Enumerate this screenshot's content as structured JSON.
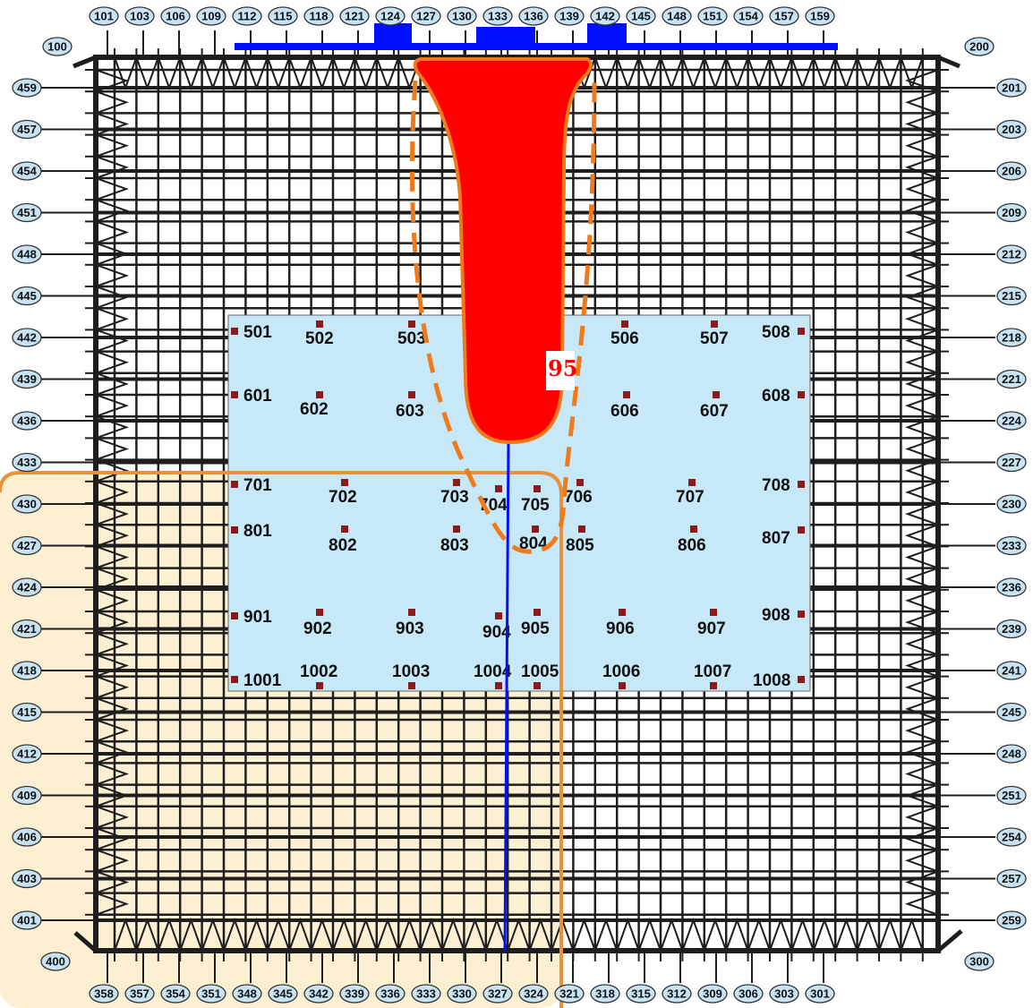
{
  "colors": {
    "grid_line": "#1e1e1e",
    "heat_zone": "#ff0000",
    "heat_outline": "#f07a1a",
    "dashed_contour": "#f07a1a",
    "sensor_panel": "#c6e8f8",
    "shaded_region": "#fdf0d2",
    "shaded_border": "#e8903a",
    "top_bar": "#0010ff",
    "vertical_line": "#0010ff",
    "sensor_marker": "#8b1a1a",
    "oval_fill": "#c8e4f4"
  },
  "value_label": "95",
  "top_labels": [
    "101",
    "103",
    "106",
    "109",
    "112",
    "115",
    "118",
    "121",
    "124",
    "127",
    "130",
    "133",
    "136",
    "139",
    "142",
    "145",
    "148",
    "151",
    "154",
    "157",
    "159"
  ],
  "bottom_labels": [
    "358",
    "357",
    "354",
    "351",
    "348",
    "345",
    "342",
    "339",
    "336",
    "333",
    "330",
    "327",
    "324",
    "321",
    "318",
    "315",
    "312",
    "309",
    "306",
    "303",
    "301"
  ],
  "left_labels": [
    "459",
    "457",
    "454",
    "451",
    "448",
    "445",
    "442",
    "439",
    "436",
    "433",
    "430",
    "427",
    "424",
    "421",
    "418",
    "415",
    "412",
    "409",
    "406",
    "403",
    "401"
  ],
  "right_labels": [
    "201",
    "203",
    "206",
    "209",
    "212",
    "215",
    "218",
    "221",
    "224",
    "227",
    "230",
    "233",
    "236",
    "239",
    "241",
    "245",
    "248",
    "251",
    "254",
    "257",
    "259"
  ],
  "corner_labels": {
    "top_left": "100",
    "top_right": "200",
    "bottom_right": "300",
    "bottom_left": "400"
  },
  "sensors": [
    {
      "id": "501",
      "side": "right"
    },
    {
      "id": "502"
    },
    {
      "id": "503"
    },
    {
      "id": "506"
    },
    {
      "id": "507"
    },
    {
      "id": "508",
      "side": "left"
    },
    {
      "id": "601",
      "side": "right"
    },
    {
      "id": "602"
    },
    {
      "id": "603"
    },
    {
      "id": "606"
    },
    {
      "id": "607"
    },
    {
      "id": "608",
      "side": "left"
    },
    {
      "id": "701",
      "side": "right"
    },
    {
      "id": "702"
    },
    {
      "id": "703"
    },
    {
      "id": "704"
    },
    {
      "id": "705"
    },
    {
      "id": "706"
    },
    {
      "id": "707"
    },
    {
      "id": "708",
      "side": "left"
    },
    {
      "id": "801",
      "side": "right"
    },
    {
      "id": "802"
    },
    {
      "id": "803"
    },
    {
      "id": "804"
    },
    {
      "id": "805"
    },
    {
      "id": "806"
    },
    {
      "id": "807",
      "side": "left"
    },
    {
      "id": "901",
      "side": "right"
    },
    {
      "id": "902"
    },
    {
      "id": "903"
    },
    {
      "id": "904"
    },
    {
      "id": "905"
    },
    {
      "id": "906"
    },
    {
      "id": "907"
    },
    {
      "id": "908",
      "side": "left"
    },
    {
      "id": "1001",
      "side": "right"
    },
    {
      "id": "1002"
    },
    {
      "id": "1003"
    },
    {
      "id": "1004"
    },
    {
      "id": "1005"
    },
    {
      "id": "1006"
    },
    {
      "id": "1007"
    },
    {
      "id": "1008",
      "side": "left"
    }
  ]
}
